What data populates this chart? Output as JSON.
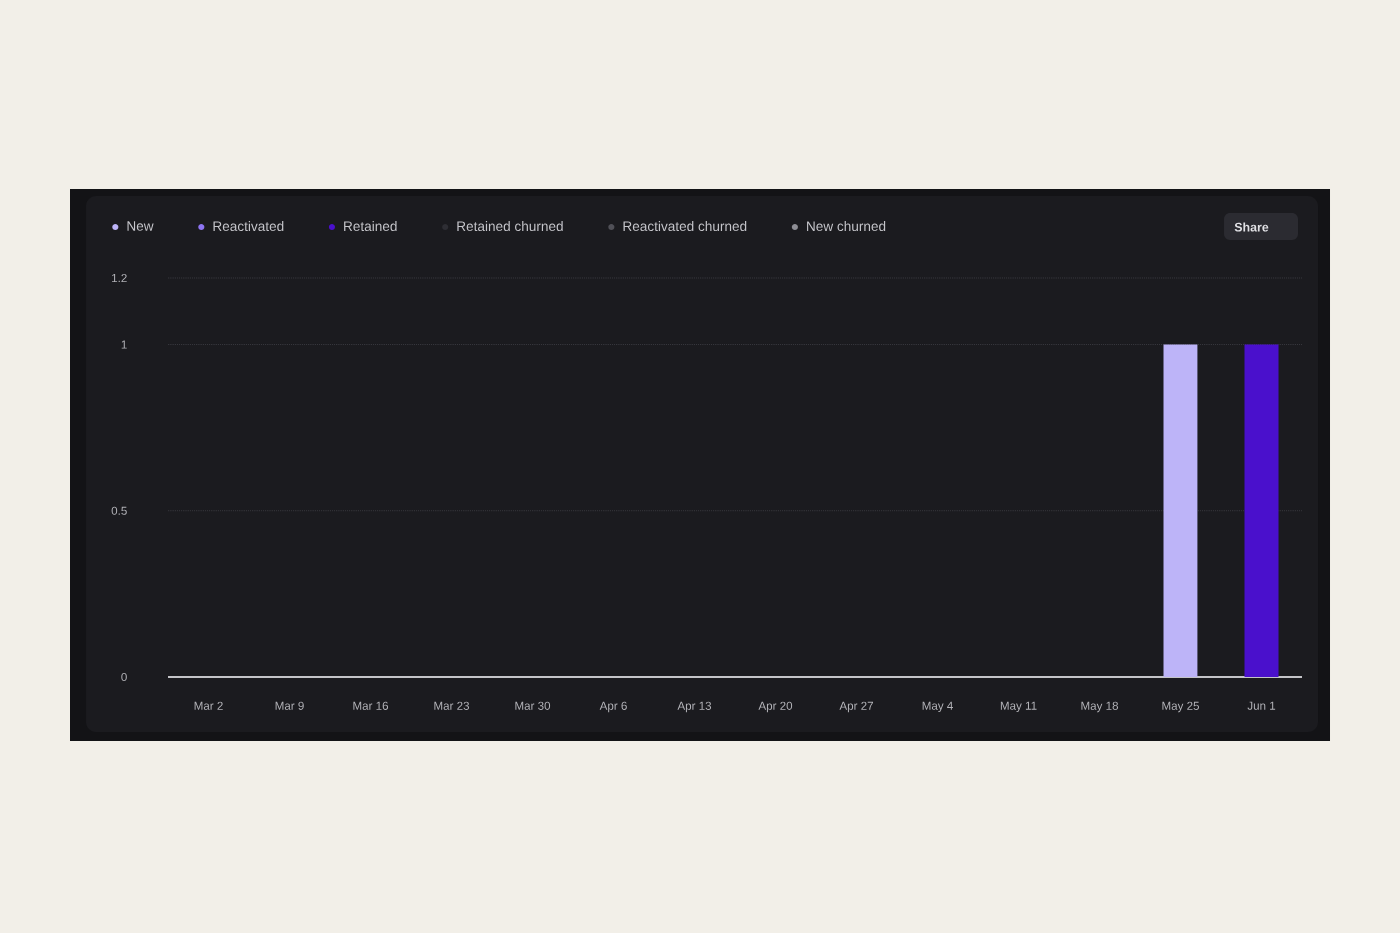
{
  "chart_data": {
    "type": "bar",
    "stacked": true,
    "categories": [
      "Mar 2",
      "Mar 9",
      "Mar 16",
      "Mar 23",
      "Mar 30",
      "Apr 6",
      "Apr 13",
      "Apr 20",
      "Apr 27",
      "May 4",
      "May 11",
      "May 18",
      "May 25",
      "Jun 1"
    ],
    "series": [
      {
        "name": "New",
        "color": "#bdb4f8",
        "values": [
          0,
          0,
          0,
          0,
          0,
          0,
          0,
          0,
          0,
          0,
          0,
          0,
          1,
          0
        ]
      },
      {
        "name": "Reactivated",
        "color": "#8d74f2",
        "values": [
          0,
          0,
          0,
          0,
          0,
          0,
          0,
          0,
          0,
          0,
          0,
          0,
          0,
          0
        ]
      },
      {
        "name": "Retained",
        "color": "#4a10cc",
        "values": [
          0,
          0,
          0,
          0,
          0,
          0,
          0,
          0,
          0,
          0,
          0,
          0,
          0,
          1
        ]
      },
      {
        "name": "Retained churned",
        "color": "#2e2e34",
        "values": [
          0,
          0,
          0,
          0,
          0,
          0,
          0,
          0,
          0,
          0,
          0,
          0,
          0,
          0
        ]
      },
      {
        "name": "Reactivated churned",
        "color": "#505057",
        "values": [
          0,
          0,
          0,
          0,
          0,
          0,
          0,
          0,
          0,
          0,
          0,
          0,
          0,
          0
        ]
      },
      {
        "name": "New churned",
        "color": "#8e8e95",
        "values": [
          0,
          0,
          0,
          0,
          0,
          0,
          0,
          0,
          0,
          0,
          0,
          0,
          0,
          0
        ]
      }
    ],
    "ylim": [
      0,
      1.2
    ],
    "yticks": [
      0,
      0.5,
      1,
      1.2
    ],
    "grid": "y",
    "legend": "top left",
    "annotations": [
      "Share"
    ]
  }
}
